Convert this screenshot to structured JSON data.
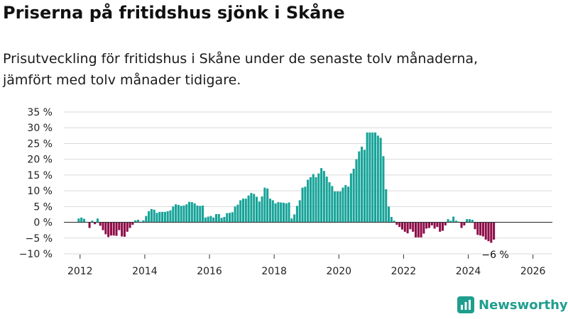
{
  "title": "Priserna på fritidshus sjönk i Skåne",
  "subtitle_line1": "Prisutveckling för fritidshus i Skåne under de senaste tolv månaderna,",
  "subtitle_line2": "jämfört med tolv månader tidigare.",
  "brand": "Newsworthy",
  "colors": {
    "positive": "#16a398",
    "negative": "#8e0c48",
    "grid": "#d9d9d9",
    "zero": "#333333",
    "brand": "#1f9e8e"
  },
  "chart_data": {
    "type": "bar",
    "unit": "%",
    "ylim": [
      -10,
      35
    ],
    "yticks": [
      35,
      30,
      25,
      20,
      15,
      10,
      5,
      0,
      -5,
      -10
    ],
    "ytick_labels": [
      "35 %",
      "30 %",
      "25 %",
      "20 %",
      "15 %",
      "10 %",
      "5 %",
      "0 %",
      "−5 %",
      "−10 %"
    ],
    "xlim": [
      2011.5,
      2026.6
    ],
    "xticks": [
      2012,
      2014,
      2016,
      2018,
      2020,
      2022,
      2024,
      2026
    ],
    "xtick_labels": [
      "2012",
      "2014",
      "2016",
      "2018",
      "2020",
      "2022",
      "2024",
      "2026"
    ],
    "start": "2011-12",
    "frequency": "monthly",
    "values": [
      1.2,
      1.5,
      1.1,
      0,
      -1.8,
      0.5,
      -0.6,
      1.2,
      -1.1,
      -2.5,
      -3.8,
      -4.7,
      -4.2,
      -4.2,
      -4.3,
      -2.5,
      -4.5,
      -4.6,
      -3.0,
      -1.8,
      -0.8,
      0.6,
      0.8,
      0.2,
      0.6,
      2.0,
      3.5,
      4.2,
      4.0,
      3.0,
      3.3,
      3.3,
      3.3,
      3.5,
      3.8,
      5.0,
      5.7,
      5.5,
      5.2,
      5.3,
      5.7,
      6.5,
      6.4,
      6.0,
      5.3,
      5.2,
      5.3,
      1.5,
      1.8,
      2.0,
      1.5,
      2.6,
      2.6,
      1.4,
      1.7,
      2.9,
      3.0,
      3.2,
      5.0,
      5.6,
      7.0,
      7.5,
      7.5,
      8.5,
      9.3,
      9.0,
      8.1,
      6.6,
      8.2,
      11.0,
      10.7,
      7.5,
      7.0,
      6.0,
      6.4,
      6.3,
      6.2,
      6.0,
      6.3,
      1.2,
      2.5,
      5.2,
      7.0,
      11.0,
      11.3,
      13.5,
      14.3,
      15.3,
      14.3,
      15.5,
      17.2,
      16.3,
      14.5,
      12.7,
      11.5,
      9.8,
      9.8,
      9.8,
      11.0,
      11.8,
      11.3,
      15.5,
      17.0,
      20.0,
      22.5,
      24.0,
      23.0,
      28.5,
      28.5,
      28.5,
      28.5,
      27.5,
      26.8,
      21.0,
      10.5,
      5.0,
      1.7,
      0.5,
      -0.8,
      -1.5,
      -2.3,
      -3.0,
      -3.5,
      -2.2,
      -3.0,
      -4.8,
      -4.8,
      -4.8,
      -3.6,
      -2.0,
      -1.8,
      -1.0,
      -2.0,
      -1.5,
      -3.0,
      -2.7,
      -1.0,
      1.0,
      0.5,
      1.8,
      0.5,
      0.2,
      -1.8,
      -1.0,
      1.0,
      1.0,
      0.8,
      -2.2,
      -4.0,
      -4.2,
      -4.5,
      -5.5,
      -6.0,
      -6.5,
      -5.5
    ],
    "annotation": {
      "label": "−6 %"
    }
  }
}
